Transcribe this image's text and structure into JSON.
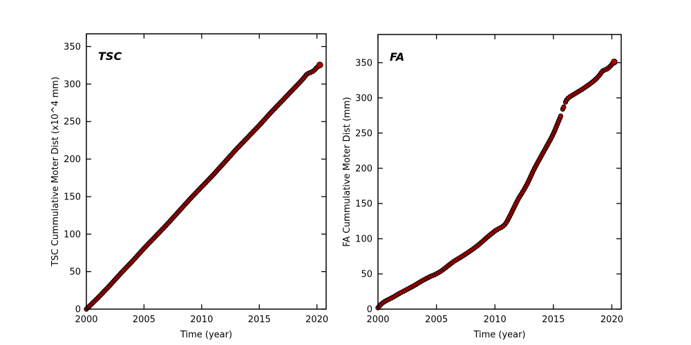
{
  "figure": {
    "background": "#ffffff"
  },
  "chart_data": [
    {
      "type": "scatter",
      "panel": "left",
      "title": "TSC",
      "xlabel": "Time (year)",
      "ylabel": "TSC Cummulative Moter Dist (x10^4 mm)",
      "xlim": [
        2000,
        2020.8
      ],
      "ylim": [
        0,
        367
      ],
      "xticks": [
        2000,
        2005,
        2010,
        2015,
        2020
      ],
      "yticks": [
        0,
        50,
        100,
        150,
        200,
        250,
        300,
        350
      ],
      "grid": false,
      "legend": null,
      "marker": {
        "fill": "#b40000",
        "edge": "#000000",
        "radius": 3.2,
        "spacing_px": 3.4
      },
      "series": [
        {
          "name": "TSC cumulative motor distance",
          "segments": [
            [
              [
                2000.0,
                0
              ],
              [
                2000.3,
                4.5
              ],
              [
                2000.7,
                10.5
              ],
              [
                2001,
                15
              ],
              [
                2001.5,
                23
              ],
              [
                2002,
                31
              ],
              [
                2002.5,
                39.5
              ],
              [
                2003,
                48
              ],
              [
                2003.5,
                56
              ],
              [
                2004,
                64
              ],
              [
                2004.5,
                72.5
              ],
              [
                2005,
                81
              ],
              [
                2005.5,
                89
              ],
              [
                2006,
                97
              ],
              [
                2006.5,
                105
              ],
              [
                2007,
                113
              ],
              [
                2007.5,
                121.5
              ],
              [
                2008,
                130
              ],
              [
                2008.5,
                138.5
              ],
              [
                2009,
                147
              ],
              [
                2009.5,
                155
              ],
              [
                2010,
                163
              ],
              [
                2010.5,
                171
              ],
              [
                2011,
                179
              ],
              [
                2011.5,
                187.5
              ],
              [
                2012,
                196
              ],
              [
                2012.5,
                204.5
              ],
              [
                2013,
                213
              ],
              [
                2013.5,
                221
              ],
              [
                2014,
                229
              ],
              [
                2014.5,
                237
              ],
              [
                2015,
                245
              ],
              [
                2015.5,
                253.5
              ],
              [
                2016,
                262
              ],
              [
                2016.5,
                270
              ],
              [
                2017,
                278
              ],
              [
                2017.5,
                286
              ],
              [
                2018,
                294
              ],
              [
                2018.4,
                300.5
              ],
              [
                2018.8,
                307
              ],
              [
                2019.0,
                311
              ],
              [
                2019.15,
                313.5
              ],
              [
                2019.35,
                315
              ],
              [
                2019.55,
                316
              ],
              [
                2019.75,
                318
              ],
              [
                2019.95,
                321.5
              ],
              [
                2020.1,
                323.5
              ],
              [
                2020.25,
                325.5
              ]
            ]
          ]
        }
      ]
    },
    {
      "type": "scatter",
      "panel": "right",
      "title": "FA",
      "xlabel": "Time (year)",
      "ylabel": "FA Cummulative Moter Dist (mm)",
      "xlim": [
        2000,
        2020.8
      ],
      "ylim": [
        0,
        390
      ],
      "xticks": [
        2000,
        2005,
        2010,
        2015,
        2020
      ],
      "yticks": [
        0,
        50,
        100,
        150,
        200,
        250,
        300,
        350
      ],
      "grid": false,
      "legend": null,
      "marker": {
        "fill": "#b40000",
        "edge": "#000000",
        "radius": 3.2,
        "spacing_px": 3.4
      },
      "series": [
        {
          "name": "FA cumulative motor distance",
          "segments": [
            [
              [
                2000.0,
                2
              ],
              [
                2000.2,
                6
              ],
              [
                2000.45,
                9.5
              ],
              [
                2000.7,
                12
              ],
              [
                2001.0,
                14.5
              ],
              [
                2001.4,
                18
              ],
              [
                2001.8,
                22
              ],
              [
                2002.2,
                25.5
              ],
              [
                2002.6,
                29
              ],
              [
                2003.0,
                32.5
              ],
              [
                2003.4,
                36.5
              ],
              [
                2003.8,
                40.5
              ],
              [
                2004.2,
                44
              ],
              [
                2004.5,
                46.5
              ],
              [
                2004.8,
                48.5
              ],
              [
                2005.1,
                51
              ],
              [
                2005.4,
                54
              ],
              [
                2005.8,
                59
              ],
              [
                2006.1,
                63
              ],
              [
                2006.5,
                68
              ],
              [
                2006.9,
                72
              ],
              [
                2007.3,
                76
              ],
              [
                2007.7,
                80.5
              ],
              [
                2008.1,
                85
              ],
              [
                2008.5,
                90
              ],
              [
                2008.9,
                95.5
              ],
              [
                2009.3,
                101.5
              ],
              [
                2009.7,
                107
              ],
              [
                2010.0,
                111
              ],
              [
                2010.3,
                114
              ],
              [
                2010.6,
                116.5
              ],
              [
                2010.85,
                120
              ],
              [
                2011.05,
                125
              ],
              [
                2011.3,
                133
              ],
              [
                2011.55,
                141.5
              ],
              [
                2011.8,
                150
              ],
              [
                2012.05,
                158
              ],
              [
                2012.3,
                164.5
              ],
              [
                2012.55,
                171.5
              ],
              [
                2012.8,
                179
              ],
              [
                2013.05,
                188
              ],
              [
                2013.3,
                197
              ],
              [
                2013.55,
                205
              ],
              [
                2013.8,
                212.5
              ],
              [
                2014.05,
                220
              ],
              [
                2014.3,
                227.5
              ],
              [
                2014.55,
                235
              ],
              [
                2014.8,
                242.5
              ],
              [
                2015.05,
                251
              ],
              [
                2015.25,
                259
              ],
              [
                2015.45,
                267
              ],
              [
                2015.6,
                273
              ],
              [
                2015.68,
                277
              ]
            ],
            [
              [
                2015.8,
                284
              ],
              [
                2015.86,
                286
              ],
              [
                2015.92,
                288.5
              ]
            ],
            [
              [
                2016.04,
                294
              ],
              [
                2016.14,
                297.5
              ],
              [
                2016.28,
                300
              ],
              [
                2016.5,
                302.5
              ],
              [
                2016.8,
                305.5
              ],
              [
                2017.1,
                308.5
              ],
              [
                2017.45,
                312
              ],
              [
                2017.8,
                316
              ],
              [
                2018.1,
                319.5
              ],
              [
                2018.45,
                324
              ],
              [
                2018.75,
                328.5
              ],
              [
                2019.0,
                333.5
              ],
              [
                2019.15,
                337
              ],
              [
                2019.3,
                339.5
              ],
              [
                2019.5,
                340
              ],
              [
                2019.7,
                342.5
              ],
              [
                2019.9,
                345.5
              ],
              [
                2020.05,
                348.5
              ],
              [
                2020.2,
                351
              ]
            ]
          ]
        }
      ]
    }
  ]
}
